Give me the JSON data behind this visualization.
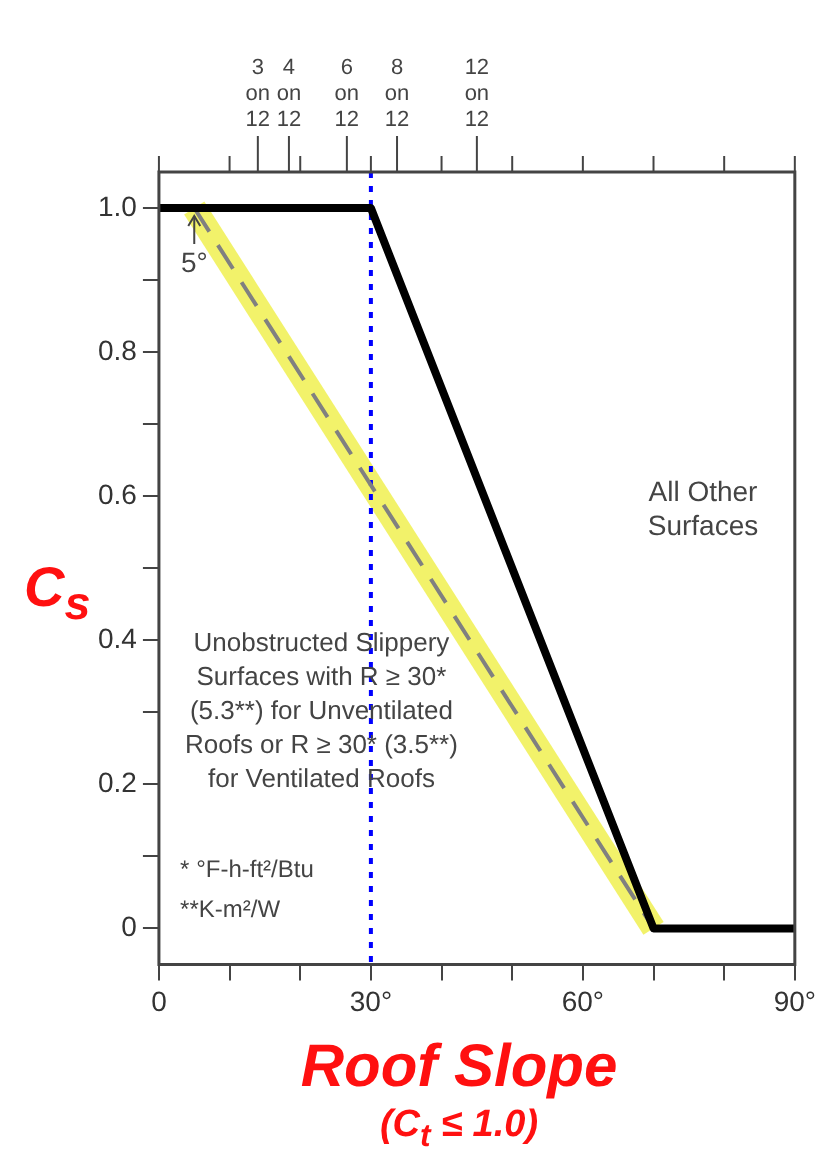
{
  "chart_data": {
    "type": "line",
    "subtitle": "(C$_{t}$ ≤ 1.0)",
    "xlabel": "Roof Slope",
    "ylabel": "C$_{s}$",
    "series": [
      {
        "name": "All Other Surfaces",
        "color": "#000000",
        "x": [
          0,
          30,
          70,
          90
        ],
        "values": [
          1,
          1,
          0,
          0
        ]
      },
      {
        "color": "#808080",
        "x": [
          5,
          70
        ],
        "values": [
          1,
          0
        ],
        "line_style": "dashed"
      }
    ],
    "xlim": [
      0,
      90
    ],
    "ylim": [
      -0.05,
      1.05
    ],
    "xticks": [
      0,
      {
        "value": 10,
        "label": null
      },
      {
        "value": 20,
        "label": null
      },
      {
        "value": 30,
        "label": "30°"
      },
      {
        "value": 40,
        "label": null
      },
      {
        "value": 50,
        "label": null
      },
      {
        "value": 60,
        "label": "60°"
      },
      {
        "value": 70,
        "label": null
      },
      {
        "value": 80,
        "label": null
      },
      {
        "value": 90,
        "label": "90°"
      }
    ],
    "yticks": [
      0,
      {
        "value": 0.1,
        "label": null
      },
      0.2,
      {
        "value": 0.3,
        "label": null
      },
      0.4,
      {
        "value": 0.5,
        "label": null
      },
      0.6,
      {
        "value": 0.7,
        "label": null
      },
      0.8,
      {
        "value": 0.9,
        "label": null
      },
      {
        "value": 1,
        "label": "1.0"
      }
    ],
    "ref_lines": [
      {
        "axis": "x",
        "value": 30,
        "color": "#0000ff",
        "line_style": "dotted"
      }
    ],
    "annotations": [
      {
        "text": "5°",
        "x": 5,
        "y": 1
      },
      "Unobstructed Slippery Surfaces with R ≥ 30* (5.3**) for Unventilated Roofs or R ≥ 30* (3.5**) for Ventilated Roofs",
      "* °F-h-ft²/Btu",
      "**K-m²/W",
      "3 on 12",
      "4 on 12",
      "6 on 12",
      "8 on 12",
      "12 on 12"
    ],
    "grid": false,
    "legend": false,
    "marker": "none",
    "line_style": "solid"
  }
}
